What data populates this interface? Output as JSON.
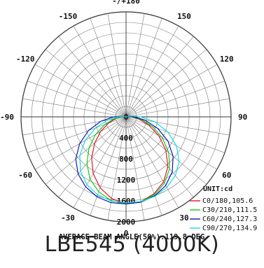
{
  "chart_data": {
    "type": "polar",
    "unit": "UNIT:cd",
    "angle_labels": [
      "-/+180",
      "150",
      "120",
      "90",
      "60",
      "30",
      "0",
      "-30",
      "-60",
      "-90",
      "-120",
      "-150"
    ],
    "radial_ticks": [
      400,
      800,
      1200,
      1600,
      2000
    ],
    "radial_tick_labels": [
      "0",
      "400",
      "800",
      "1200",
      "1600",
      "2000"
    ],
    "rmax": 2000,
    "grid": true,
    "legend_position": "bottom-right",
    "series": [
      {
        "name": "C0/180,105.6",
        "color": "#e8001c",
        "angles": [
          0,
          10,
          20,
          30,
          40,
          50,
          60,
          70,
          80,
          90,
          100,
          180
        ],
        "values_positive": [
          1660,
          1640,
          1560,
          1430,
          1240,
          990,
          720,
          460,
          250,
          110,
          40,
          0
        ],
        "values_negative": [
          1660,
          1580,
          1440,
          1250,
          1020,
          780,
          560,
          360,
          200,
          90,
          30,
          0
        ]
      },
      {
        "name": "C30/210,111.5",
        "color": "#00c800",
        "angles": [
          0,
          10,
          20,
          30,
          40,
          50,
          60,
          70,
          80,
          90,
          100,
          180
        ],
        "values_positive": [
          1660,
          1640,
          1580,
          1460,
          1290,
          1060,
          800,
          530,
          300,
          130,
          50,
          0
        ],
        "values_negative": [
          1660,
          1620,
          1520,
          1370,
          1160,
          920,
          670,
          430,
          240,
          100,
          40,
          0
        ]
      },
      {
        "name": "C60/240,127.3",
        "color": "#0000b4",
        "angles": [
          0,
          10,
          20,
          30,
          40,
          50,
          60,
          70,
          80,
          90,
          100,
          180
        ],
        "values_positive": [
          1660,
          1650,
          1600,
          1510,
          1370,
          1170,
          920,
          640,
          370,
          160,
          60,
          0
        ],
        "values_negative": [
          1660,
          1660,
          1620,
          1540,
          1420,
          1250,
          1020,
          760,
          490,
          240,
          80,
          0
        ]
      },
      {
        "name": "C90/270,134.9",
        "color": "#00dcdc",
        "angles": [
          0,
          10,
          20,
          30,
          40,
          50,
          60,
          70,
          80,
          90,
          100,
          180
        ],
        "values_positive": [
          1640,
          1640,
          1610,
          1550,
          1460,
          1320,
          1110,
          850,
          560,
          280,
          100,
          0
        ],
        "values_negative": [
          1640,
          1630,
          1580,
          1490,
          1350,
          1150,
          900,
          620,
          360,
          160,
          60,
          0
        ]
      }
    ],
    "annotation": "AVERAGE BEAM ANGLE(50%):119.8 DEG"
  },
  "product_title": "LBE545 (4000K)"
}
